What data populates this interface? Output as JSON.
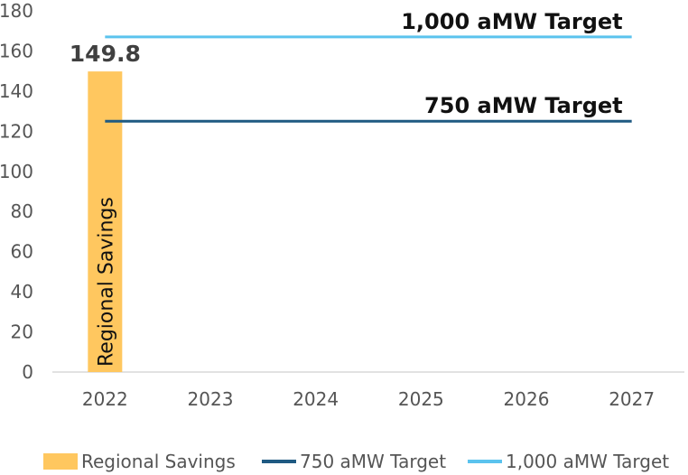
{
  "chart_data": {
    "type": "bar",
    "categories": [
      "2022",
      "2023",
      "2024",
      "2025",
      "2026",
      "2027"
    ],
    "ylim": [
      0,
      180
    ],
    "yticks": [
      0,
      20,
      40,
      60,
      80,
      100,
      120,
      140,
      160,
      180
    ],
    "grid": false,
    "series": [
      {
        "name": "Regional Savings",
        "type": "bar",
        "color": "#FFC75F",
        "values": [
          149.8,
          null,
          null,
          null,
          null,
          null
        ],
        "data_label": "149.8",
        "inner_label": "Regional Savings"
      },
      {
        "name": "750 aMW Target",
        "type": "line",
        "color": "#1F5A82",
        "values": [
          125,
          125,
          125,
          125,
          125,
          125
        ],
        "line_label": "750 aMW Target"
      },
      {
        "name": "1,000 aMW Target",
        "type": "line",
        "color": "#5BC3EE",
        "values": [
          167,
          167,
          167,
          167,
          167,
          167
        ],
        "line_label": "1,000 aMW Target"
      }
    ],
    "legend_position": "bottom"
  }
}
